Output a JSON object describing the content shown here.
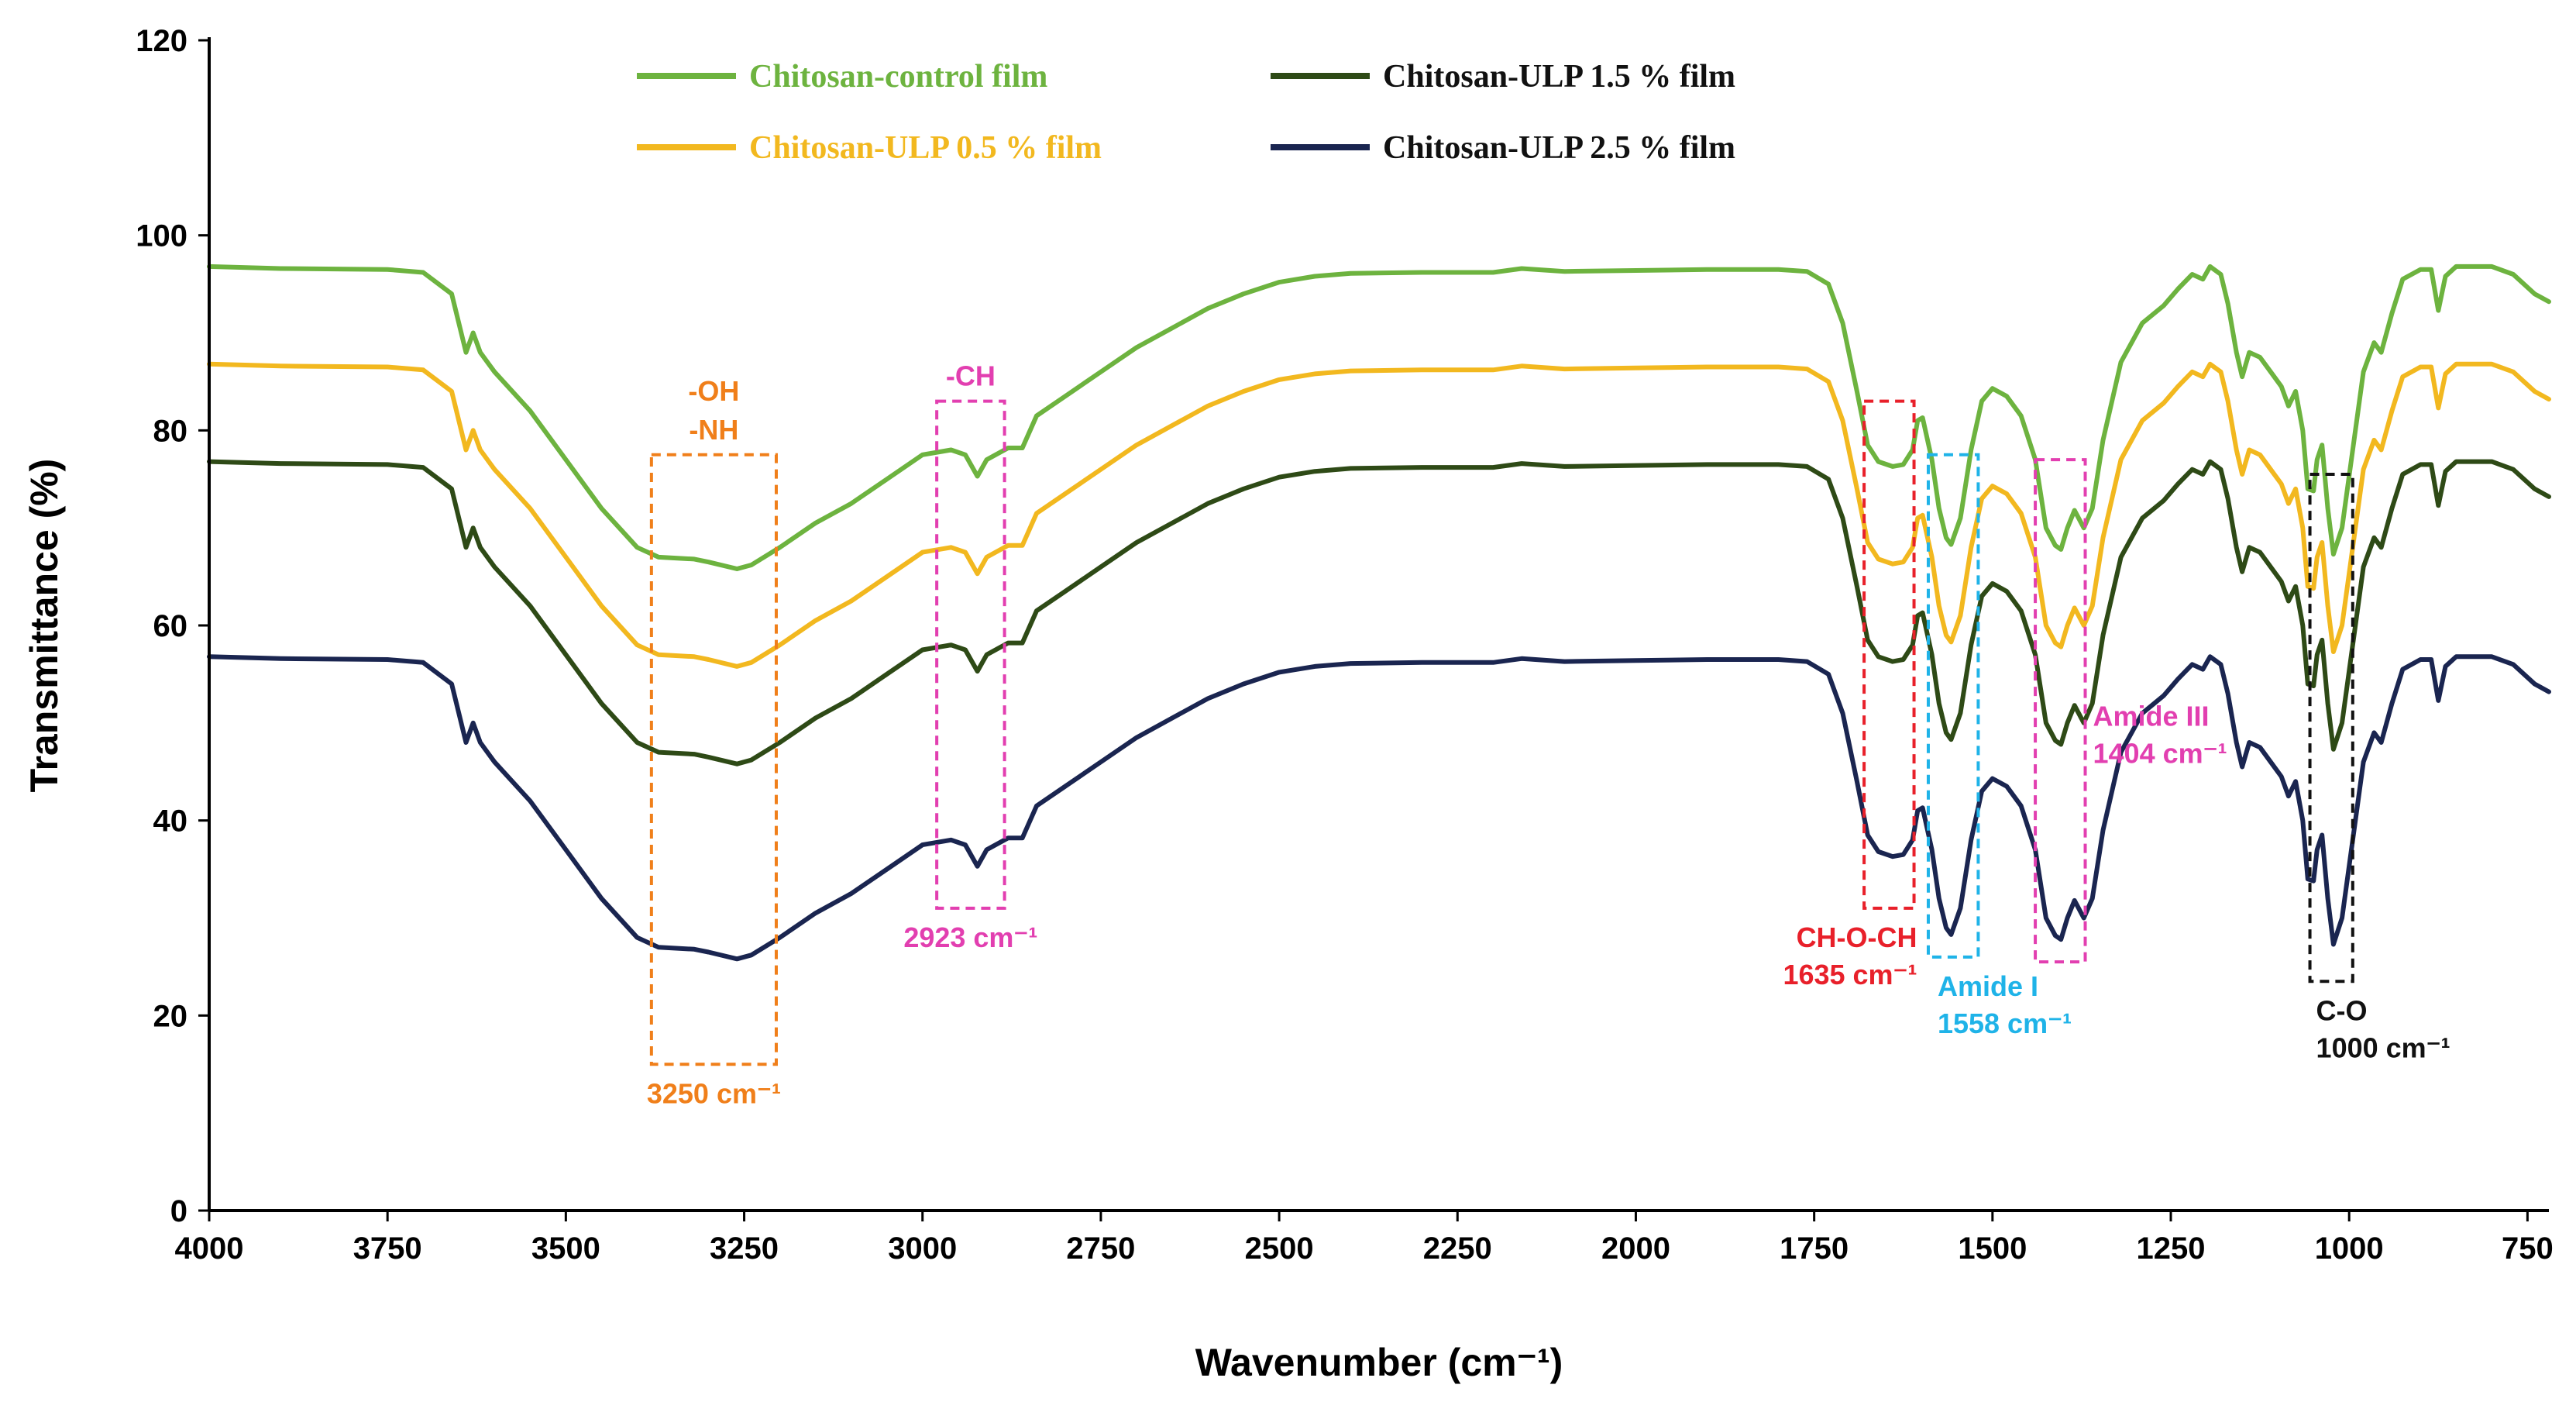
{
  "chart_data": {
    "type": "line",
    "title": "",
    "xlabel": "Wavenumber (cm⁻¹)",
    "ylabel": "Transmittance (%)",
    "xlim": [
      4000,
      720
    ],
    "ylim": [
      0,
      120
    ],
    "x_ticks": [
      "4000",
      "3750",
      "3500",
      "3250",
      "3000",
      "2750",
      "2500",
      "2250",
      "2000",
      "1750",
      "1500",
      "1250",
      "1000",
      "750"
    ],
    "y_ticks": [
      "0",
      "20",
      "40",
      "60",
      "80",
      "100",
      "120"
    ],
    "grid": false,
    "legend_position": "top-center",
    "series": [
      {
        "name": "Chitosan-control film",
        "color": "#6db33f",
        "offset": 0,
        "points": [
          [
            4000,
            96.8
          ],
          [
            3900,
            96.6
          ],
          [
            3750,
            96.5
          ],
          [
            3700,
            96.2
          ],
          [
            3660,
            94
          ],
          [
            3640,
            88
          ],
          [
            3630,
            90
          ],
          [
            3620,
            88
          ],
          [
            3600,
            86
          ],
          [
            3550,
            82
          ],
          [
            3500,
            77
          ],
          [
            3450,
            72
          ],
          [
            3400,
            68
          ],
          [
            3370,
            67
          ],
          [
            3320,
            66.8
          ],
          [
            3300,
            66.5
          ],
          [
            3260,
            65.8
          ],
          [
            3240,
            66.2
          ],
          [
            3200,
            68
          ],
          [
            3150,
            70.5
          ],
          [
            3100,
            72.5
          ],
          [
            3050,
            75
          ],
          [
            3000,
            77.5
          ],
          [
            2960,
            78
          ],
          [
            2940,
            77.5
          ],
          [
            2923,
            75.3
          ],
          [
            2910,
            77
          ],
          [
            2880,
            78.2
          ],
          [
            2860,
            78.2
          ],
          [
            2840,
            81.5
          ],
          [
            2800,
            83.5
          ],
          [
            2750,
            86
          ],
          [
            2700,
            88.5
          ],
          [
            2650,
            90.5
          ],
          [
            2600,
            92.5
          ],
          [
            2550,
            94
          ],
          [
            2500,
            95.2
          ],
          [
            2450,
            95.8
          ],
          [
            2400,
            96.1
          ],
          [
            2300,
            96.2
          ],
          [
            2200,
            96.2
          ],
          [
            2160,
            96.6
          ],
          [
            2100,
            96.3
          ],
          [
            2000,
            96.4
          ],
          [
            1900,
            96.5
          ],
          [
            1800,
            96.5
          ],
          [
            1760,
            96.3
          ],
          [
            1730,
            95
          ],
          [
            1710,
            91
          ],
          [
            1690,
            84
          ],
          [
            1675,
            78.5
          ],
          [
            1660,
            76.8
          ],
          [
            1640,
            76.3
          ],
          [
            1625,
            76.5
          ],
          [
            1612,
            78
          ],
          [
            1605,
            81
          ],
          [
            1598,
            81.3
          ],
          [
            1585,
            77
          ],
          [
            1575,
            72
          ],
          [
            1565,
            69
          ],
          [
            1558,
            68.3
          ],
          [
            1545,
            71
          ],
          [
            1530,
            78
          ],
          [
            1515,
            83
          ],
          [
            1500,
            84.3
          ],
          [
            1480,
            83.5
          ],
          [
            1460,
            81.5
          ],
          [
            1440,
            77
          ],
          [
            1425,
            70
          ],
          [
            1412,
            68.2
          ],
          [
            1404,
            67.8
          ],
          [
            1395,
            70
          ],
          [
            1385,
            71.8
          ],
          [
            1372,
            70
          ],
          [
            1360,
            72
          ],
          [
            1345,
            79
          ],
          [
            1320,
            87
          ],
          [
            1290,
            91
          ],
          [
            1260,
            92.8
          ],
          [
            1240,
            94.5
          ],
          [
            1220,
            96
          ],
          [
            1205,
            95.5
          ],
          [
            1195,
            96.8
          ],
          [
            1180,
            96
          ],
          [
            1170,
            93
          ],
          [
            1158,
            88
          ],
          [
            1150,
            85.5
          ],
          [
            1140,
            88
          ],
          [
            1125,
            87.5
          ],
          [
            1110,
            86
          ],
          [
            1095,
            84.5
          ],
          [
            1085,
            82.5
          ],
          [
            1075,
            84
          ],
          [
            1065,
            80
          ],
          [
            1058,
            74
          ],
          [
            1050,
            73.8
          ],
          [
            1045,
            77
          ],
          [
            1038,
            78.5
          ],
          [
            1030,
            72
          ],
          [
            1022,
            67.3
          ],
          [
            1010,
            70
          ],
          [
            995,
            78
          ],
          [
            980,
            86
          ],
          [
            965,
            89
          ],
          [
            955,
            88
          ],
          [
            940,
            92
          ],
          [
            925,
            95.5
          ],
          [
            900,
            96.5
          ],
          [
            885,
            96.5
          ],
          [
            875,
            92.3
          ],
          [
            865,
            95.8
          ],
          [
            850,
            96.8
          ],
          [
            800,
            96.8
          ],
          [
            770,
            96
          ],
          [
            740,
            94
          ],
          [
            720,
            93.2
          ]
        ]
      },
      {
        "name": "Chitosan-ULP 0.5 % film",
        "color": "#f2b81f",
        "offset": -10,
        "points": []
      },
      {
        "name": "Chitosan-ULP 1.5 % film",
        "color": "#2e4a16",
        "offset": -20,
        "points": []
      },
      {
        "name": "Chitosan-ULP 2.5 % film",
        "color": "#1a2550",
        "offset": -40,
        "points": []
      }
    ],
    "annotations": [
      {
        "lines": [
          "-OH",
          "-NH"
        ],
        "label": "3250 cm⁻¹",
        "color": "#f07f1a",
        "x_range": [
          3380,
          3205
        ],
        "y_range": [
          15,
          77.5
        ],
        "label_pos": "below"
      },
      {
        "lines": [
          "-CH"
        ],
        "label": "2923 cm⁻¹",
        "color": "#e23fb0",
        "x_range": [
          2980,
          2885
        ],
        "y_range": [
          31,
          83
        ],
        "label_pos": "below"
      },
      {
        "lines": [],
        "label": "CH-O-CH",
        "label2": "1635 cm⁻¹",
        "color": "#e8202a",
        "x_range": [
          1680,
          1610
        ],
        "y_range": [
          31,
          83
        ],
        "label_pos": "below-left"
      },
      {
        "lines": [],
        "label": "Amide I",
        "label2": "1558 cm⁻¹",
        "color": "#1fb3e8",
        "x_range": [
          1590,
          1520
        ],
        "y_range": [
          26,
          77.5
        ],
        "label_pos": "below-right"
      },
      {
        "lines": [],
        "label": "Amide III",
        "label2": "1404 cm⁻¹",
        "color": "#e23fb0",
        "x_range": [
          1440,
          1370
        ],
        "y_range": [
          25.5,
          77
        ],
        "label_pos": "right"
      },
      {
        "lines": [],
        "label": "C-O",
        "label2": "1000 cm⁻¹",
        "color": "#111111",
        "x_range": [
          1055,
          995
        ],
        "y_range": [
          23.5,
          75.5
        ],
        "label_pos": "below"
      }
    ]
  }
}
